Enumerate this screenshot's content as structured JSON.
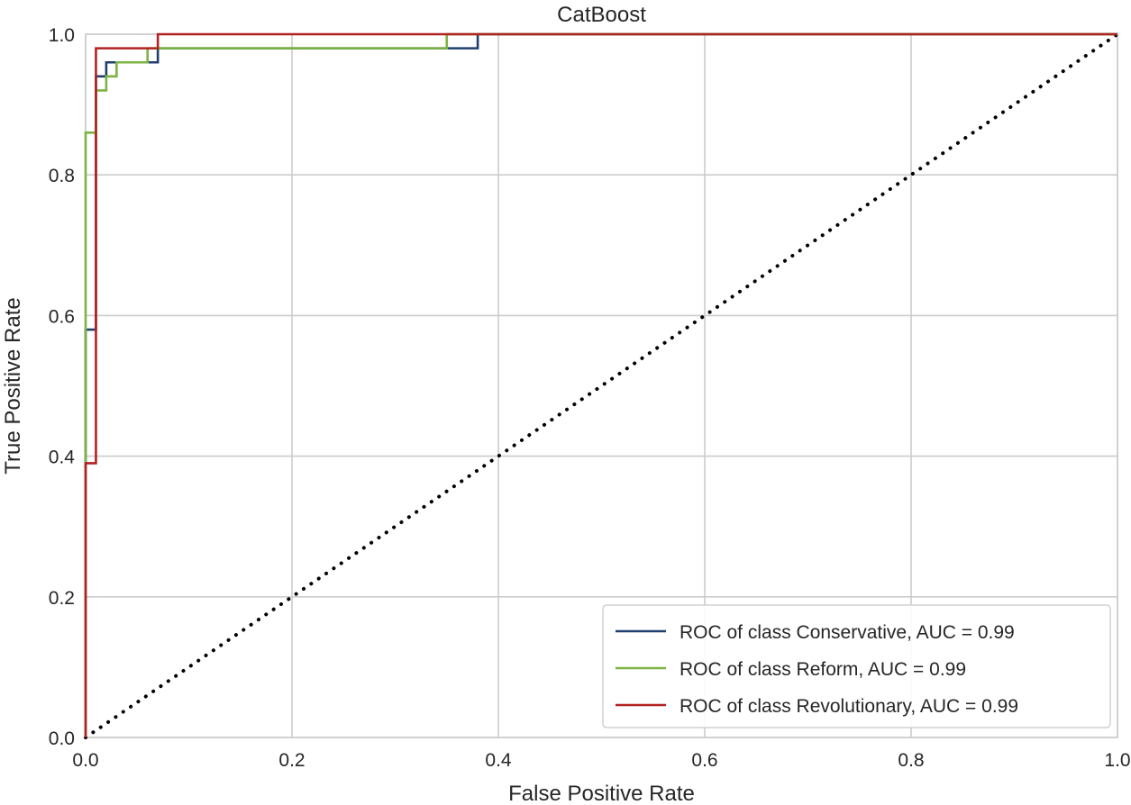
{
  "chart_data": {
    "type": "line",
    "title": "CatBoost",
    "xlabel": "False Positive Rate",
    "ylabel": "True Positive Rate",
    "xlim": [
      0.0,
      1.0
    ],
    "ylim": [
      0.0,
      1.0
    ],
    "xticks": [
      "0.0",
      "0.2",
      "0.4",
      "0.6",
      "0.8",
      "1.0"
    ],
    "yticks": [
      "0.0",
      "0.2",
      "0.4",
      "0.6",
      "0.8",
      "1.0"
    ],
    "grid": true,
    "legend_position": "bottom-right",
    "series": [
      {
        "name": "ROC of class Conservative, AUC = 0.99",
        "color": "#1f3f6e",
        "x": [
          0.0,
          0.0,
          0.01,
          0.01,
          0.02,
          0.02,
          0.07,
          0.07,
          0.38,
          0.38,
          1.0
        ],
        "y": [
          0.0,
          0.58,
          0.58,
          0.94,
          0.94,
          0.96,
          0.96,
          0.98,
          0.98,
          1.0,
          1.0
        ]
      },
      {
        "name": "ROC of class Reform, AUC = 0.99",
        "color": "#7cb342",
        "x": [
          0.0,
          0.0,
          0.0,
          0.01,
          0.01,
          0.02,
          0.02,
          0.03,
          0.03,
          0.06,
          0.06,
          0.35,
          0.35,
          1.0
        ],
        "y": [
          0.0,
          0.86,
          0.86,
          0.86,
          0.92,
          0.92,
          0.94,
          0.94,
          0.96,
          0.96,
          0.98,
          0.98,
          1.0,
          1.0
        ]
      },
      {
        "name": "ROC of class Revolutionary, AUC = 0.99",
        "color": "#b22222",
        "x": [
          0.0,
          0.0,
          0.01,
          0.01,
          0.07,
          0.07,
          1.0
        ],
        "y": [
          0.0,
          0.39,
          0.39,
          0.98,
          0.98,
          1.0,
          1.0
        ]
      }
    ],
    "reference_line": {
      "style": "dotted",
      "color": "#000000",
      "x": [
        0.0,
        1.0
      ],
      "y": [
        0.0,
        1.0
      ]
    }
  }
}
